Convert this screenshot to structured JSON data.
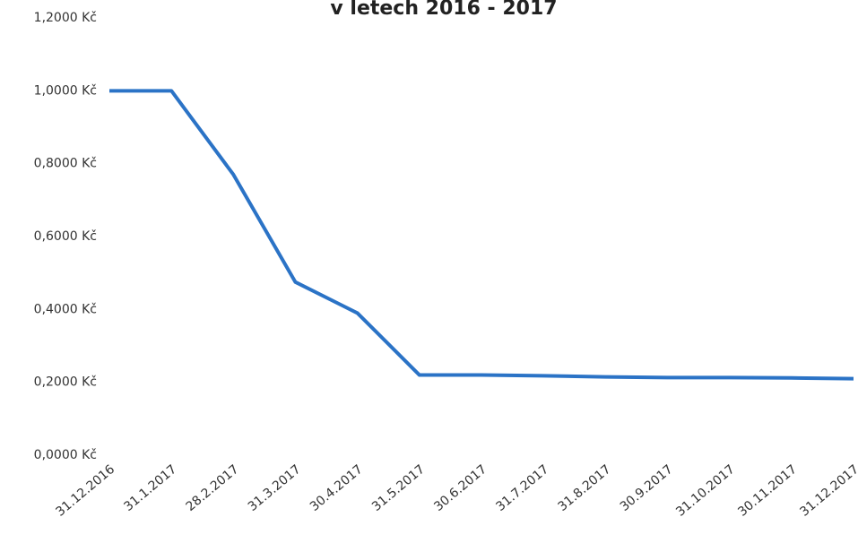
{
  "chart_data": {
    "type": "line",
    "title": "v letech 2016 - 2017",
    "categories": [
      "31.12.2016",
      "31.1.2017",
      "28.2.2017",
      "31.3.2017",
      "30.4.2017",
      "31.5.2017",
      "30.6.2017",
      "31.7.2017",
      "31.8.2017",
      "30.9.2017",
      "31.10.2017",
      "30.11.2017",
      "31.12.2017"
    ],
    "series": [
      {
        "color": "#2b73c6",
        "values": [
          1.0,
          1.0,
          0.77,
          0.475,
          0.39,
          0.22,
          0.22,
          0.218,
          0.215,
          0.213,
          0.213,
          0.212,
          0.21
        ]
      }
    ],
    "ylim": [
      0,
      1.2
    ],
    "yticks": [
      {
        "value": 0,
        "label": "0,0000 Kč"
      },
      {
        "value": 0.2,
        "label": "0,2000 Kč"
      },
      {
        "value": 0.4,
        "label": "0,4000 Kč"
      },
      {
        "value": 0.6,
        "label": "0,6000 Kč"
      },
      {
        "value": 0.8,
        "label": "0,8000 Kč"
      },
      {
        "value": 1.0,
        "label": "1,0000 Kč"
      },
      {
        "value": 1.2,
        "label": "1,2000 Kč"
      }
    ],
    "grid": false
  }
}
